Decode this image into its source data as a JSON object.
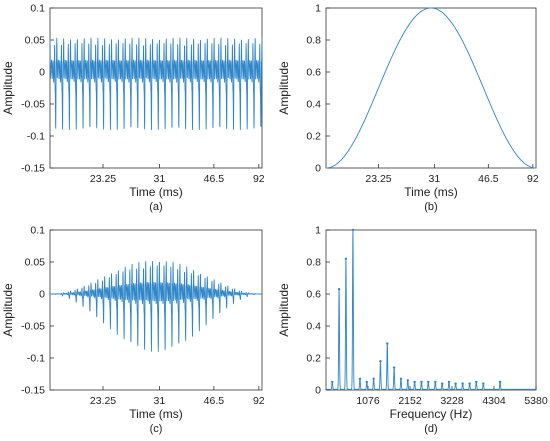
{
  "colors": {
    "line": "#2f86c8",
    "axis": "#333333",
    "text": "#222222"
  },
  "chart_data": [
    {
      "type": "line",
      "id": "a",
      "caption": "(a)",
      "xlabel": "Time (ms)",
      "ylabel": "Amplitude",
      "ylim": [
        -0.15,
        0.1
      ],
      "yticks": [
        -0.15,
        -0.1,
        -0.05,
        0,
        0.05,
        0.1
      ],
      "ytick_labels": [
        "-0.15",
        "-0.1",
        "-0.05",
        "0",
        "0.05",
        "0.1"
      ],
      "xtick_labels": [
        "23.25",
        "31",
        "46.5",
        "92"
      ],
      "grid": false,
      "signal": {
        "kind": "vowel-waveform",
        "periods": 31,
        "amplitude": 0.09,
        "envelope": "flat"
      }
    },
    {
      "type": "line",
      "id": "b",
      "caption": "(b)",
      "xlabel": "Time (ms)",
      "ylabel": "Amplitude",
      "ylim": [
        0,
        1
      ],
      "yticks": [
        0,
        0.2,
        0.4,
        0.6,
        0.8,
        1
      ],
      "ytick_labels": [
        "0",
        "0.2",
        "0.4",
        "0.6",
        "0.8",
        "1"
      ],
      "xtick_labels": [
        "23.25",
        "31",
        "46.5",
        "92"
      ],
      "grid": false,
      "signal": {
        "kind": "hann-window",
        "peak": 1
      }
    },
    {
      "type": "line",
      "id": "c",
      "caption": "(c)",
      "xlabel": "Time (ms)",
      "ylabel": "Amplitude",
      "ylim": [
        -0.15,
        0.1
      ],
      "yticks": [
        -0.15,
        -0.1,
        -0.05,
        0,
        0.05,
        0.1
      ],
      "ytick_labels": [
        "-0.15",
        "-0.1",
        "-0.05",
        "0",
        "0.05",
        "0.1"
      ],
      "xtick_labels": [
        "23.25",
        "31",
        "46.5",
        "92"
      ],
      "grid": false,
      "signal": {
        "kind": "vowel-waveform",
        "periods": 31,
        "amplitude": 0.09,
        "envelope": "hann"
      }
    },
    {
      "type": "line",
      "id": "d",
      "caption": "(d)",
      "xlabel": "Frequency (Hz)",
      "ylabel": "Amplitude",
      "xlim": [
        0,
        5380
      ],
      "ylim": [
        0,
        1
      ],
      "xticks": [
        1076,
        2152,
        3228,
        4304,
        5380
      ],
      "xtick_labels": [
        "1076",
        "2152",
        "3228",
        "4304",
        "5380"
      ],
      "yticks": [
        0,
        0.2,
        0.4,
        0.6,
        0.8,
        1
      ],
      "ytick_labels": [
        "0",
        "0.2",
        "0.4",
        "0.6",
        "0.8",
        "1"
      ],
      "grid": false,
      "peaks": [
        {
          "freq": 160,
          "amp": 0.05
        },
        {
          "freq": 335,
          "amp": 0.63
        },
        {
          "freq": 510,
          "amp": 0.82
        },
        {
          "freq": 690,
          "amp": 1.0
        },
        {
          "freq": 870,
          "amp": 0.07
        },
        {
          "freq": 1045,
          "amp": 0.05
        },
        {
          "freq": 1220,
          "amp": 0.07
        },
        {
          "freq": 1395,
          "amp": 0.18
        },
        {
          "freq": 1570,
          "amp": 0.29
        },
        {
          "freq": 1745,
          "amp": 0.14
        },
        {
          "freq": 1920,
          "amp": 0.07
        },
        {
          "freq": 2095,
          "amp": 0.06
        },
        {
          "freq": 2270,
          "amp": 0.05
        },
        {
          "freq": 2445,
          "amp": 0.05
        },
        {
          "freq": 2620,
          "amp": 0.05
        },
        {
          "freq": 2800,
          "amp": 0.05
        },
        {
          "freq": 2975,
          "amp": 0.04
        },
        {
          "freq": 3150,
          "amp": 0.05
        },
        {
          "freq": 3320,
          "amp": 0.04
        },
        {
          "freq": 3500,
          "amp": 0.04
        },
        {
          "freq": 3680,
          "amp": 0.04
        },
        {
          "freq": 3850,
          "amp": 0.05
        },
        {
          "freq": 4030,
          "amp": 0.04
        },
        {
          "freq": 4460,
          "amp": 0.05
        }
      ]
    }
  ]
}
